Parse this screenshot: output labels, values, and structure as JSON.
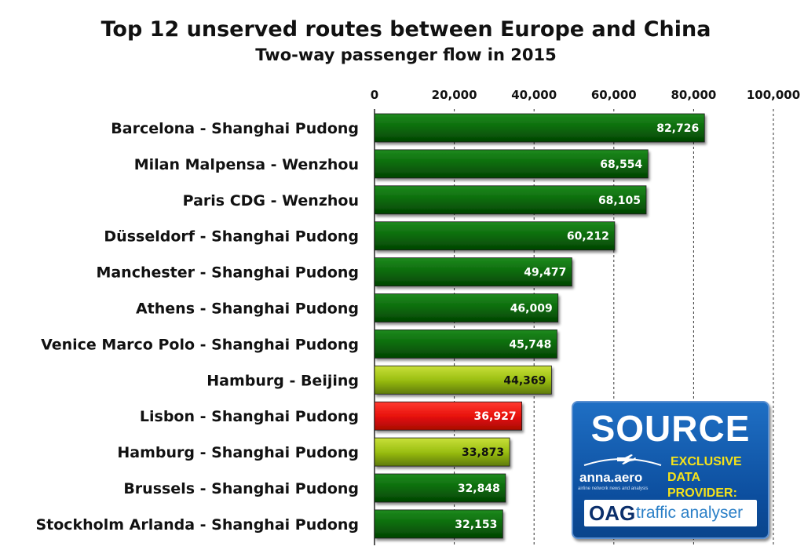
{
  "chart_data": {
    "type": "bar",
    "orientation": "horizontal",
    "title": "Top 12 unserved routes between Europe and China",
    "subtitle": "Two-way passenger flow in 2015",
    "categories": [
      "Barcelona - Shanghai Pudong",
      "Milan Malpensa - Wenzhou",
      "Paris CDG - Wenzhou",
      "Düsseldorf - Shanghai Pudong",
      "Manchester - Shanghai Pudong",
      "Athens - Shanghai Pudong",
      "Venice Marco Polo - Shanghai Pudong",
      "Hamburg - Beijing",
      "Lisbon - Shanghai Pudong",
      "Hamburg - Shanghai Pudong",
      "Brussels - Shanghai Pudong",
      "Stockholm Arlanda - Shanghai Pudong"
    ],
    "values": [
      82726,
      68554,
      68105,
      60212,
      49477,
      46009,
      45748,
      44369,
      36927,
      33873,
      32848,
      32153
    ],
    "data_labels": [
      "82,726",
      "68,554",
      "68,105",
      "60,212",
      "49,477",
      "46,009",
      "45,748",
      "44,369",
      "36,927",
      "33,873",
      "32,848",
      "32,153"
    ],
    "bar_colors": [
      "#0a6a0a",
      "#0a6a0a",
      "#0a6a0a",
      "#0a6a0a",
      "#0a6a0a",
      "#0a6a0a",
      "#0a6a0a",
      "#9bbf12",
      "#e8120c",
      "#9bbf12",
      "#0a6a0a",
      "#0a6a0a"
    ],
    "xlim": [
      0,
      100000
    ],
    "xticks": [
      0,
      20000,
      40000,
      60000,
      80000,
      100000
    ],
    "xtick_labels": [
      "0",
      "20,000",
      "40,000",
      "60,000",
      "80,000",
      "100,000"
    ],
    "x_axis_position": "top",
    "grid": "vertical dashed",
    "legend": "none"
  },
  "badge": {
    "heading": "SOURCE",
    "provider_line1": "EXCLUSIVE",
    "provider_line2": "DATA PROVIDER:",
    "logo_text": "anna.aero",
    "logo_tagline": "airline network news and analysis",
    "oag_mark": "OAG",
    "oag_text": "traffic analyser"
  },
  "colors": {
    "green": "#0a6a0a",
    "yellow_green": "#9bbf12",
    "red": "#e8120c",
    "badge_blue": "#0c4e9e",
    "badge_yellow": "#f5e21a"
  }
}
